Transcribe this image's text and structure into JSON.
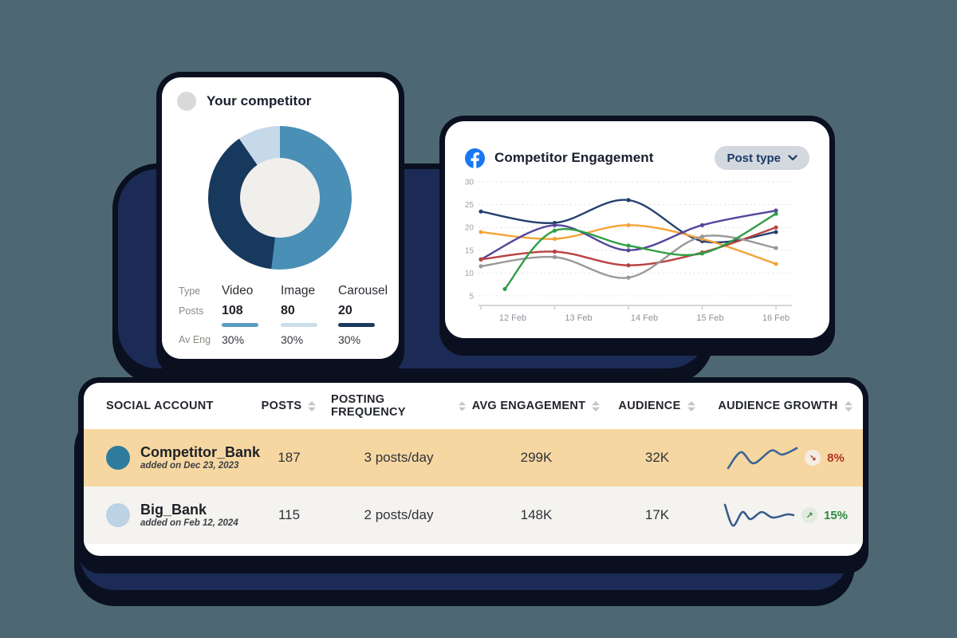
{
  "page": {
    "background": "#4D6873",
    "panel_color": "#1B2B55",
    "facebook_blue": "#1877F2"
  },
  "donut_card": {
    "title": "Your competitor",
    "legend_row_labels": [
      "Type",
      "Posts",
      "Av Eng"
    ],
    "columns": [
      {
        "type": "Video",
        "posts": "108",
        "avg_eng": "30%",
        "bar_color": "#5C9DC3"
      },
      {
        "type": "Image",
        "posts": "80",
        "avg_eng": "30%",
        "bar_color": "#CBDEEC"
      },
      {
        "type": "Carousel",
        "posts": "20",
        "avg_eng": "30%",
        "bar_color": "#1B3A5E"
      }
    ]
  },
  "engagement_card": {
    "title": "Competitor Engagement",
    "dropdown_label": "Post type"
  },
  "chart_data": [
    {
      "type": "pie",
      "title": "Your competitor post types (donut)",
      "labels": [
        "Video",
        "Image",
        "Carousel"
      ],
      "values": [
        108,
        80,
        20
      ],
      "colors": [
        "#4A8FB5",
        "#17395E",
        "#C6D9E9"
      ],
      "donut_hole": 0.56
    },
    {
      "type": "line",
      "title": "Competitor Engagement",
      "x": [
        "12 Feb",
        "13 Feb",
        "14 Feb",
        "15 Feb",
        "16 Feb"
      ],
      "yticks": [
        5,
        10,
        15,
        20,
        25,
        30
      ],
      "ylim": [
        2,
        30
      ],
      "grid": "dotted-horizontal",
      "legend_position": "none",
      "series": [
        {
          "name": "navy",
          "color": "#25406E",
          "values": [
            23.5,
            21,
            26,
            17,
            19
          ]
        },
        {
          "name": "orange",
          "color": "#F4A437",
          "values": [
            19,
            17.5,
            20.5,
            17.5,
            12
          ]
        },
        {
          "name": "purple",
          "color": "#53479B",
          "values": [
            13,
            20.5,
            15,
            20.5,
            23.7
          ]
        },
        {
          "name": "red",
          "color": "#BA4141",
          "values": [
            13,
            14.7,
            11.7,
            14.5,
            20
          ]
        },
        {
          "name": "gray",
          "color": "#999999",
          "values": [
            11.5,
            13.5,
            9,
            18,
            15.5
          ]
        },
        {
          "name": "green",
          "color": "#2F9E44",
          "values": [
            6.5,
            19.3,
            16,
            14.3,
            23
          ]
        }
      ]
    }
  ],
  "table": {
    "columns": [
      {
        "label": "SOCIAL ACCOUNT",
        "sortable": false
      },
      {
        "label": "POSTS",
        "sortable": true
      },
      {
        "label": "POSTING FREQUENCY",
        "sortable": true
      },
      {
        "label": "AVG ENGAGEMENT",
        "sortable": true
      },
      {
        "label": "AUDIENCE",
        "sortable": true
      },
      {
        "label": "AUDIENCE GROWTH",
        "sortable": true
      }
    ],
    "rows": [
      {
        "account": "Competitor_Bank",
        "added": "added on Dec 23, 2023",
        "avatar_color": "#2F7B9E",
        "row_bg": "#F6D7A2",
        "posts": "187",
        "frequency": "3 posts/day",
        "avg_engagement": "299K",
        "audience": "32K",
        "growth": {
          "pct": "8%",
          "direction": "down",
          "arrow": "↘",
          "color": "#B23327",
          "badge_bg": "#F5EDE4",
          "spark_color": "#3D6493",
          "spark": [
            [
              2,
              30
            ],
            [
              18,
              10
            ],
            [
              34,
              24
            ],
            [
              56,
              8
            ],
            [
              70,
              13
            ],
            [
              88,
              5
            ]
          ]
        }
      },
      {
        "account": "Big_Bank",
        "added": "added on Feb 12, 2024",
        "avatar_color": "#BCD2E5",
        "row_bg": "#F4F3F0",
        "posts": "115",
        "frequency": "2 posts/day",
        "avg_engagement": "148K",
        "audience": "17K",
        "growth": {
          "pct": "15%",
          "direction": "up",
          "arrow": "↗",
          "color": "#2E8B3E",
          "badge_bg": "#E3EADF",
          "spark_color": "#3A5C8C",
          "spark": [
            [
              2,
              4
            ],
            [
              12,
              30
            ],
            [
              24,
              13
            ],
            [
              34,
              22
            ],
            [
              48,
              13
            ],
            [
              62,
              20
            ],
            [
              80,
              16
            ],
            [
              88,
              17
            ]
          ]
        }
      }
    ]
  }
}
